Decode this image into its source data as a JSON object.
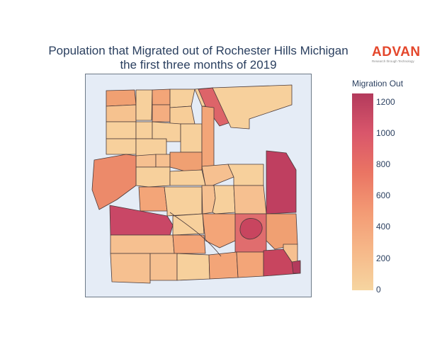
{
  "title_line1": "Population that Migrated out of Rochester Hills Michigan",
  "title_line2": "the first three months of 2019",
  "logo": {
    "word": "ADVAN",
    "tagline": "Research through Technology",
    "color": "#e4472c"
  },
  "colorbar": {
    "title": "Migration Out",
    "ticks": [
      "1200",
      "1000",
      "800",
      "600",
      "400",
      "200",
      "0"
    ],
    "scale": [
      "#f6d5a0",
      "#f6b889",
      "#f39a74",
      "#ea7463",
      "#d9566b",
      "#b33a5c"
    ]
  },
  "map_background": "#e5ecf6"
}
